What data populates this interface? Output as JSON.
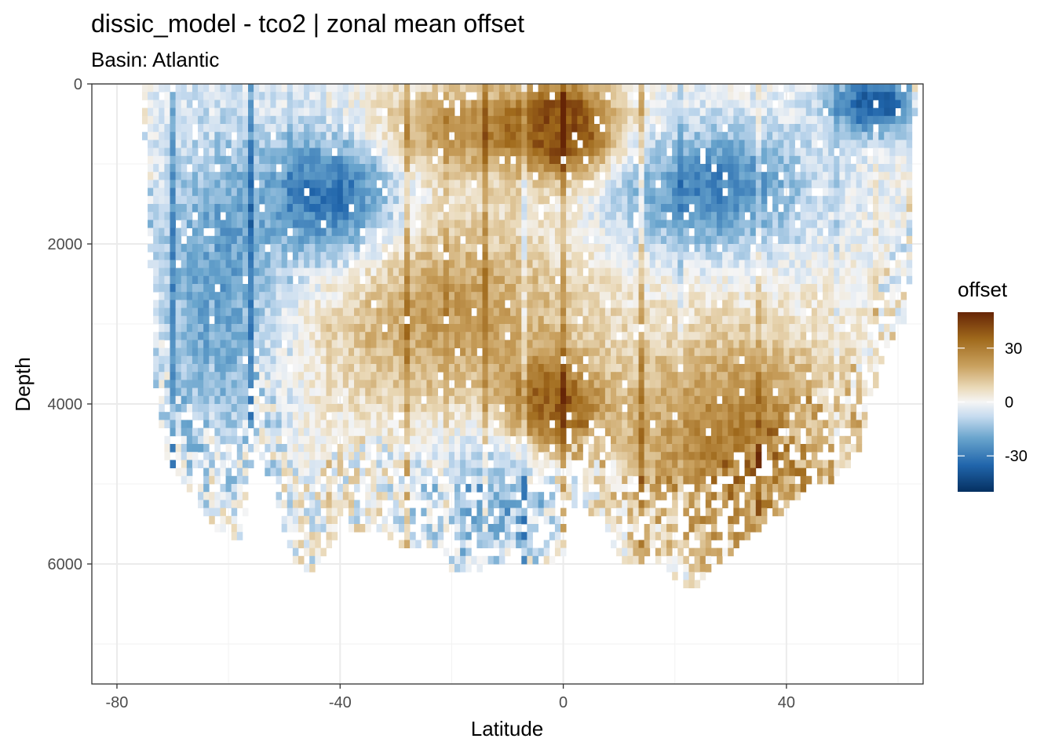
{
  "chart_data": {
    "type": "heatmap",
    "title": "dissic_model - tco2  | zonal mean offset",
    "subtitle": "Basin: Atlantic",
    "xlabel": "Latitude",
    "ylabel": "Depth",
    "xlim": [
      -84.5,
      64.5
    ],
    "ylim": [
      7500,
      0
    ],
    "y_reversed": true,
    "x_ticks": [
      -80,
      -40,
      0,
      40
    ],
    "x_tick_labels": [
      "-80",
      "-40",
      "0",
      "40"
    ],
    "y_ticks": [
      0,
      2000,
      4000,
      6000
    ],
    "y_tick_labels": [
      "0",
      "2000",
      "4000",
      "6000"
    ],
    "grid": true,
    "cell_width_deg": 1,
    "cell_height_m": 100,
    "colorscale": {
      "name": "offset",
      "range": [
        -50,
        50
      ],
      "stops": [
        {
          "value": -50,
          "color": "#053061"
        },
        {
          "value": -35,
          "color": "#2166ac"
        },
        {
          "value": -20,
          "color": "#6aa5cd"
        },
        {
          "value": -8,
          "color": "#c6dbef"
        },
        {
          "value": 0,
          "color": "#f5f5f5"
        },
        {
          "value": 8,
          "color": "#ead9b8"
        },
        {
          "value": 20,
          "color": "#c9a15f"
        },
        {
          "value": 35,
          "color": "#a06a1c"
        },
        {
          "value": 50,
          "color": "#662506"
        }
      ],
      "ticks": [
        30,
        0,
        -30
      ],
      "tick_labels": [
        "30",
        "0",
        "-30"
      ]
    },
    "legend_title": "offset",
    "legend_position": "right",
    "depth_extent": [
      {
        "lat": -75,
        "max_depth": 700
      },
      {
        "lat": -73,
        "max_depth": 3800
      },
      {
        "lat": -71,
        "max_depth": 4700
      },
      {
        "lat": -66,
        "max_depth": 5200
      },
      {
        "lat": -61,
        "max_depth": 5600
      },
      {
        "lat": -58,
        "max_depth": 5700
      },
      {
        "lat": -55,
        "max_depth": 4600
      },
      {
        "lat": -52,
        "max_depth": 5000
      },
      {
        "lat": -49,
        "max_depth": 5800
      },
      {
        "lat": -47,
        "max_depth": 6100
      },
      {
        "lat": -44,
        "max_depth": 6000
      },
      {
        "lat": -40,
        "max_depth": 5600
      },
      {
        "lat": -34,
        "max_depth": 5500
      },
      {
        "lat": -28,
        "max_depth": 5800
      },
      {
        "lat": -22,
        "max_depth": 5800
      },
      {
        "lat": -20,
        "max_depth": 6100
      },
      {
        "lat": -14,
        "max_depth": 6000
      },
      {
        "lat": -8,
        "max_depth": 6000
      },
      {
        "lat": -4,
        "max_depth": 6000
      },
      {
        "lat": -1,
        "max_depth": 6000
      },
      {
        "lat": 0,
        "max_depth": 5900
      },
      {
        "lat": 1,
        "max_depth": 5200
      },
      {
        "lat": 4,
        "max_depth": 5300
      },
      {
        "lat": 7,
        "max_depth": 5400
      },
      {
        "lat": 10,
        "max_depth": 5900
      },
      {
        "lat": 12,
        "max_depth": 6000
      },
      {
        "lat": 18,
        "max_depth": 6000
      },
      {
        "lat": 23,
        "max_depth": 6300
      },
      {
        "lat": 27,
        "max_depth": 6000
      },
      {
        "lat": 32,
        "max_depth": 5700
      },
      {
        "lat": 38,
        "max_depth": 5400
      },
      {
        "lat": 44,
        "max_depth": 5000
      },
      {
        "lat": 49,
        "max_depth": 4900
      },
      {
        "lat": 53,
        "max_depth": 4600
      },
      {
        "lat": 56,
        "max_depth": 3800
      },
      {
        "lat": 59,
        "max_depth": 3200
      },
      {
        "lat": 61,
        "max_depth": 3000
      },
      {
        "lat": 62,
        "max_depth": 2500
      },
      {
        "lat": 63,
        "max_depth": 400
      }
    ],
    "features": [
      {
        "name": "upper ocean positive core near equator",
        "lat": [
          -6,
          6
        ],
        "depth": [
          100,
          900
        ],
        "offset": 45
      },
      {
        "name": "southern subsurface positive tongue",
        "lat": [
          -42,
          12
        ],
        "depth": [
          100,
          900
        ],
        "offset": 25
      },
      {
        "name": "southern ocean negative column",
        "lat": [
          -72,
          -52
        ],
        "depth": [
          0,
          5000
        ],
        "offset": -22
      },
      {
        "name": "antarctic intermediate negative band",
        "lat": [
          -52,
          -30
        ],
        "depth": [
          400,
          2200
        ],
        "offset": -35
      },
      {
        "name": "mid depth positive band",
        "lat": [
          -45,
          5
        ],
        "depth": [
          1500,
          4200
        ],
        "offset": 22
      },
      {
        "name": "equatorial bottom positive core",
        "lat": [
          -8,
          4
        ],
        "depth": [
          3600,
          4400
        ],
        "offset": 40
      },
      {
        "name": "north atlantic upper negative band",
        "lat": [
          8,
          45
        ],
        "depth": [
          500,
          2000
        ],
        "offset": -28
      },
      {
        "name": "north atlantic deep positive",
        "lat": [
          8,
          55
        ],
        "depth": [
          3000,
          6000
        ],
        "offset": 30
      },
      {
        "name": "abyssal south atlantic negative",
        "lat": [
          -25,
          0
        ],
        "depth": [
          4200,
          6000
        ],
        "offset": -18
      },
      {
        "name": "surface negative near 55N",
        "lat": [
          50,
          62
        ],
        "depth": [
          0,
          400
        ],
        "offset": -40
      }
    ]
  }
}
